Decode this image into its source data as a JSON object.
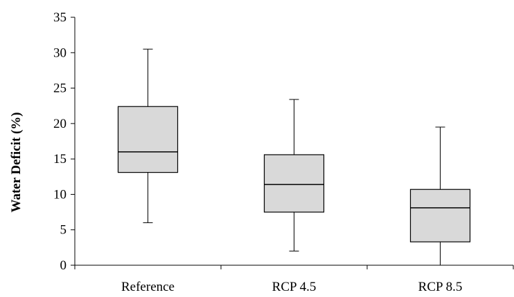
{
  "chart_data": {
    "type": "box",
    "title": "",
    "xlabel": "",
    "ylabel": "Water Deficit (%)",
    "ylim": [
      0,
      35
    ],
    "yticks": [
      0,
      5,
      10,
      15,
      20,
      25,
      30,
      35
    ],
    "grid": false,
    "legend": "none",
    "box_fill": "#d9d9d9",
    "line_color": "#000000",
    "categories": [
      "Reference",
      "RCP 4.5",
      "RCP 8.5"
    ],
    "boxes": [
      {
        "category": "Reference",
        "min": 6.0,
        "q1": 13.1,
        "median": 16.0,
        "q3": 22.4,
        "max": 30.5
      },
      {
        "category": "RCP 4.5",
        "min": 2.0,
        "q1": 7.5,
        "median": 11.4,
        "q3": 15.6,
        "max": 23.4
      },
      {
        "category": "RCP 8.5",
        "min": 0.0,
        "q1": 3.3,
        "median": 8.1,
        "q3": 10.7,
        "max": 19.5
      }
    ]
  }
}
